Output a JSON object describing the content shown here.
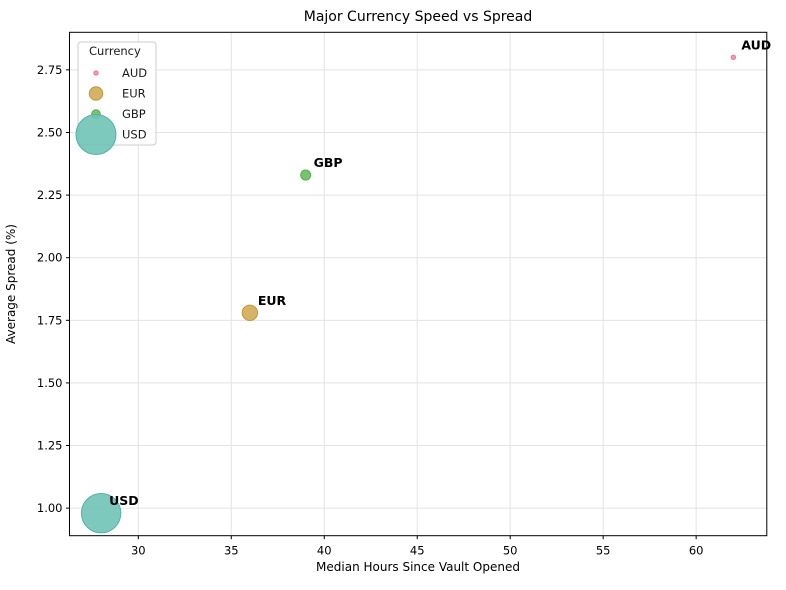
{
  "chart_data": {
    "type": "scatter",
    "title": "Major Currency Speed vs Spread",
    "xlabel": "Median Hours Since Vault Opened",
    "ylabel": "Average Spread (%)",
    "xlim": [
      26.3,
      63.8
    ],
    "ylim": [
      0.89,
      2.9
    ],
    "xticks": [
      "30",
      "35",
      "40",
      "45",
      "50",
      "55",
      "60"
    ],
    "yticks": [
      "1.00",
      "1.25",
      "1.50",
      "1.75",
      "2.00",
      "2.25",
      "2.50",
      "2.75"
    ],
    "grid": true,
    "background_color": "#ffffff",
    "points": [
      {
        "label": "AUD",
        "x": 62,
        "y": 2.8,
        "radius_px": 2.2,
        "color": "#ef8fa2",
        "edge_color": "#e87b92"
      },
      {
        "label": "EUR",
        "x": 36,
        "y": 1.78,
        "radius_px": 7.7,
        "color": "#d0ab57",
        "edge_color": "#bf9a40"
      },
      {
        "label": "GBP",
        "x": 39,
        "y": 2.33,
        "radius_px": 5.0,
        "color": "#68bc60",
        "edge_color": "#57ab50"
      },
      {
        "label": "USD",
        "x": 28,
        "y": 0.98,
        "radius_px": 19.7,
        "color": "#6fc3b7",
        "edge_color": "#55b2a5"
      }
    ],
    "legend": {
      "title": "Currency",
      "position": "upper-left",
      "entries": [
        {
          "label": "AUD",
          "marker_radius_px": 2.2
        },
        {
          "label": "EUR",
          "marker_radius_px": 6.7
        },
        {
          "label": "GBP",
          "marker_radius_px": 4.3
        },
        {
          "label": "USD",
          "marker_radius_px": 20.0
        }
      ]
    }
  }
}
